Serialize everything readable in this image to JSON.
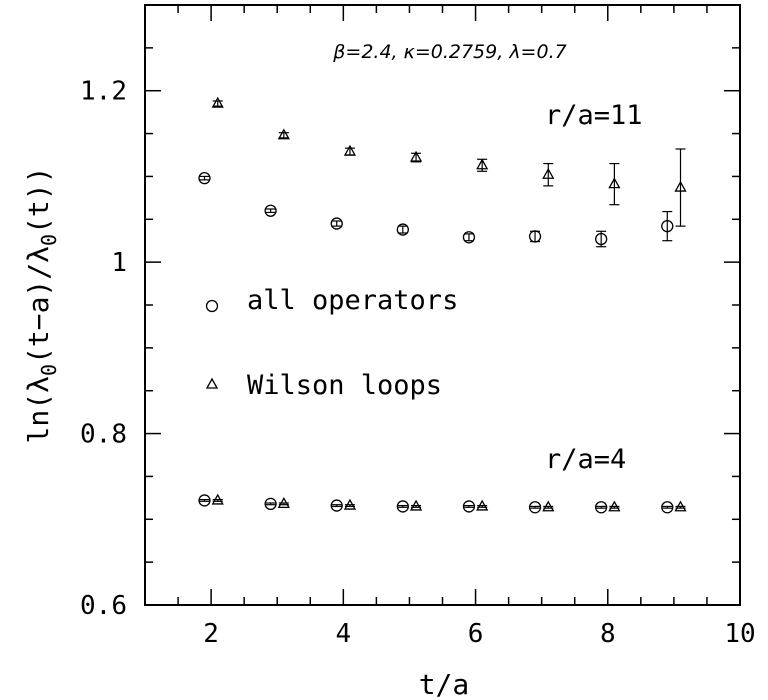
{
  "chart_data": {
    "type": "scatter",
    "title": "β=2.4, κ=0.2759, λ=0.7",
    "xlabel": "t/a",
    "ylabel": "ln(λ0(t−a)/λ0(t))",
    "ylabel_parts": {
      "pre": "ln(λ",
      "sub1": "0",
      "mid": "(t−a)/λ",
      "sub2": "0",
      "post": "(t))"
    },
    "xlim": [
      1,
      10
    ],
    "ylim": [
      0.6,
      1.3
    ],
    "x_major_ticks": [
      2,
      4,
      6,
      8,
      10
    ],
    "x_minor_step": 0.5,
    "y_major_ticks": [
      0.6,
      0.8,
      1.0,
      1.2
    ],
    "y_tick_labels": [
      "0.6",
      "0.8",
      "1",
      "1.2"
    ],
    "y_minor_step": 0.05,
    "grid": false,
    "legend": [
      {
        "label": "all operators",
        "marker": "circle"
      },
      {
        "label": "Wilson loops",
        "marker": "triangle"
      }
    ],
    "annotations": [
      "r/a=11",
      "r/a=4"
    ],
    "series": [
      {
        "name": "all operators",
        "group": "r/a=11",
        "marker": "circle",
        "x": [
          1.9,
          2.9,
          3.9,
          4.9,
          5.9,
          6.9,
          7.9,
          8.9
        ],
        "y": [
          1.098,
          1.06,
          1.045,
          1.038,
          1.029,
          1.03,
          1.027,
          1.042
        ],
        "err": [
          0.002,
          0.002,
          0.003,
          0.004,
          0.004,
          0.006,
          0.009,
          0.017
        ]
      },
      {
        "name": "Wilson loops",
        "group": "r/a=11",
        "marker": "triangle",
        "x": [
          2.1,
          3.1,
          4.1,
          5.1,
          6.1,
          7.1,
          8.1,
          9.1
        ],
        "y": [
          1.185,
          1.148,
          1.129,
          1.122,
          1.113,
          1.102,
          1.091,
          1.087
        ],
        "err": [
          0.003,
          0.003,
          0.004,
          0.005,
          0.007,
          0.013,
          0.024,
          0.045
        ]
      },
      {
        "name": "all operators",
        "group": "r/a=4",
        "marker": "circle",
        "x": [
          1.9,
          2.9,
          3.9,
          4.9,
          5.9,
          6.9,
          7.9,
          8.9
        ],
        "y": [
          0.722,
          0.718,
          0.716,
          0.715,
          0.715,
          0.714,
          0.714,
          0.714
        ],
        "err": [
          0.001,
          0.001,
          0.001,
          0.001,
          0.001,
          0.001,
          0.001,
          0.001
        ]
      },
      {
        "name": "Wilson loops",
        "group": "r/a=4",
        "marker": "triangle",
        "x": [
          2.1,
          3.1,
          4.1,
          5.1,
          6.1,
          7.1,
          8.1,
          9.1
        ],
        "y": [
          0.722,
          0.718,
          0.716,
          0.715,
          0.715,
          0.714,
          0.714,
          0.714
        ],
        "err": [
          0.001,
          0.001,
          0.001,
          0.001,
          0.001,
          0.001,
          0.001,
          0.001
        ]
      }
    ]
  }
}
